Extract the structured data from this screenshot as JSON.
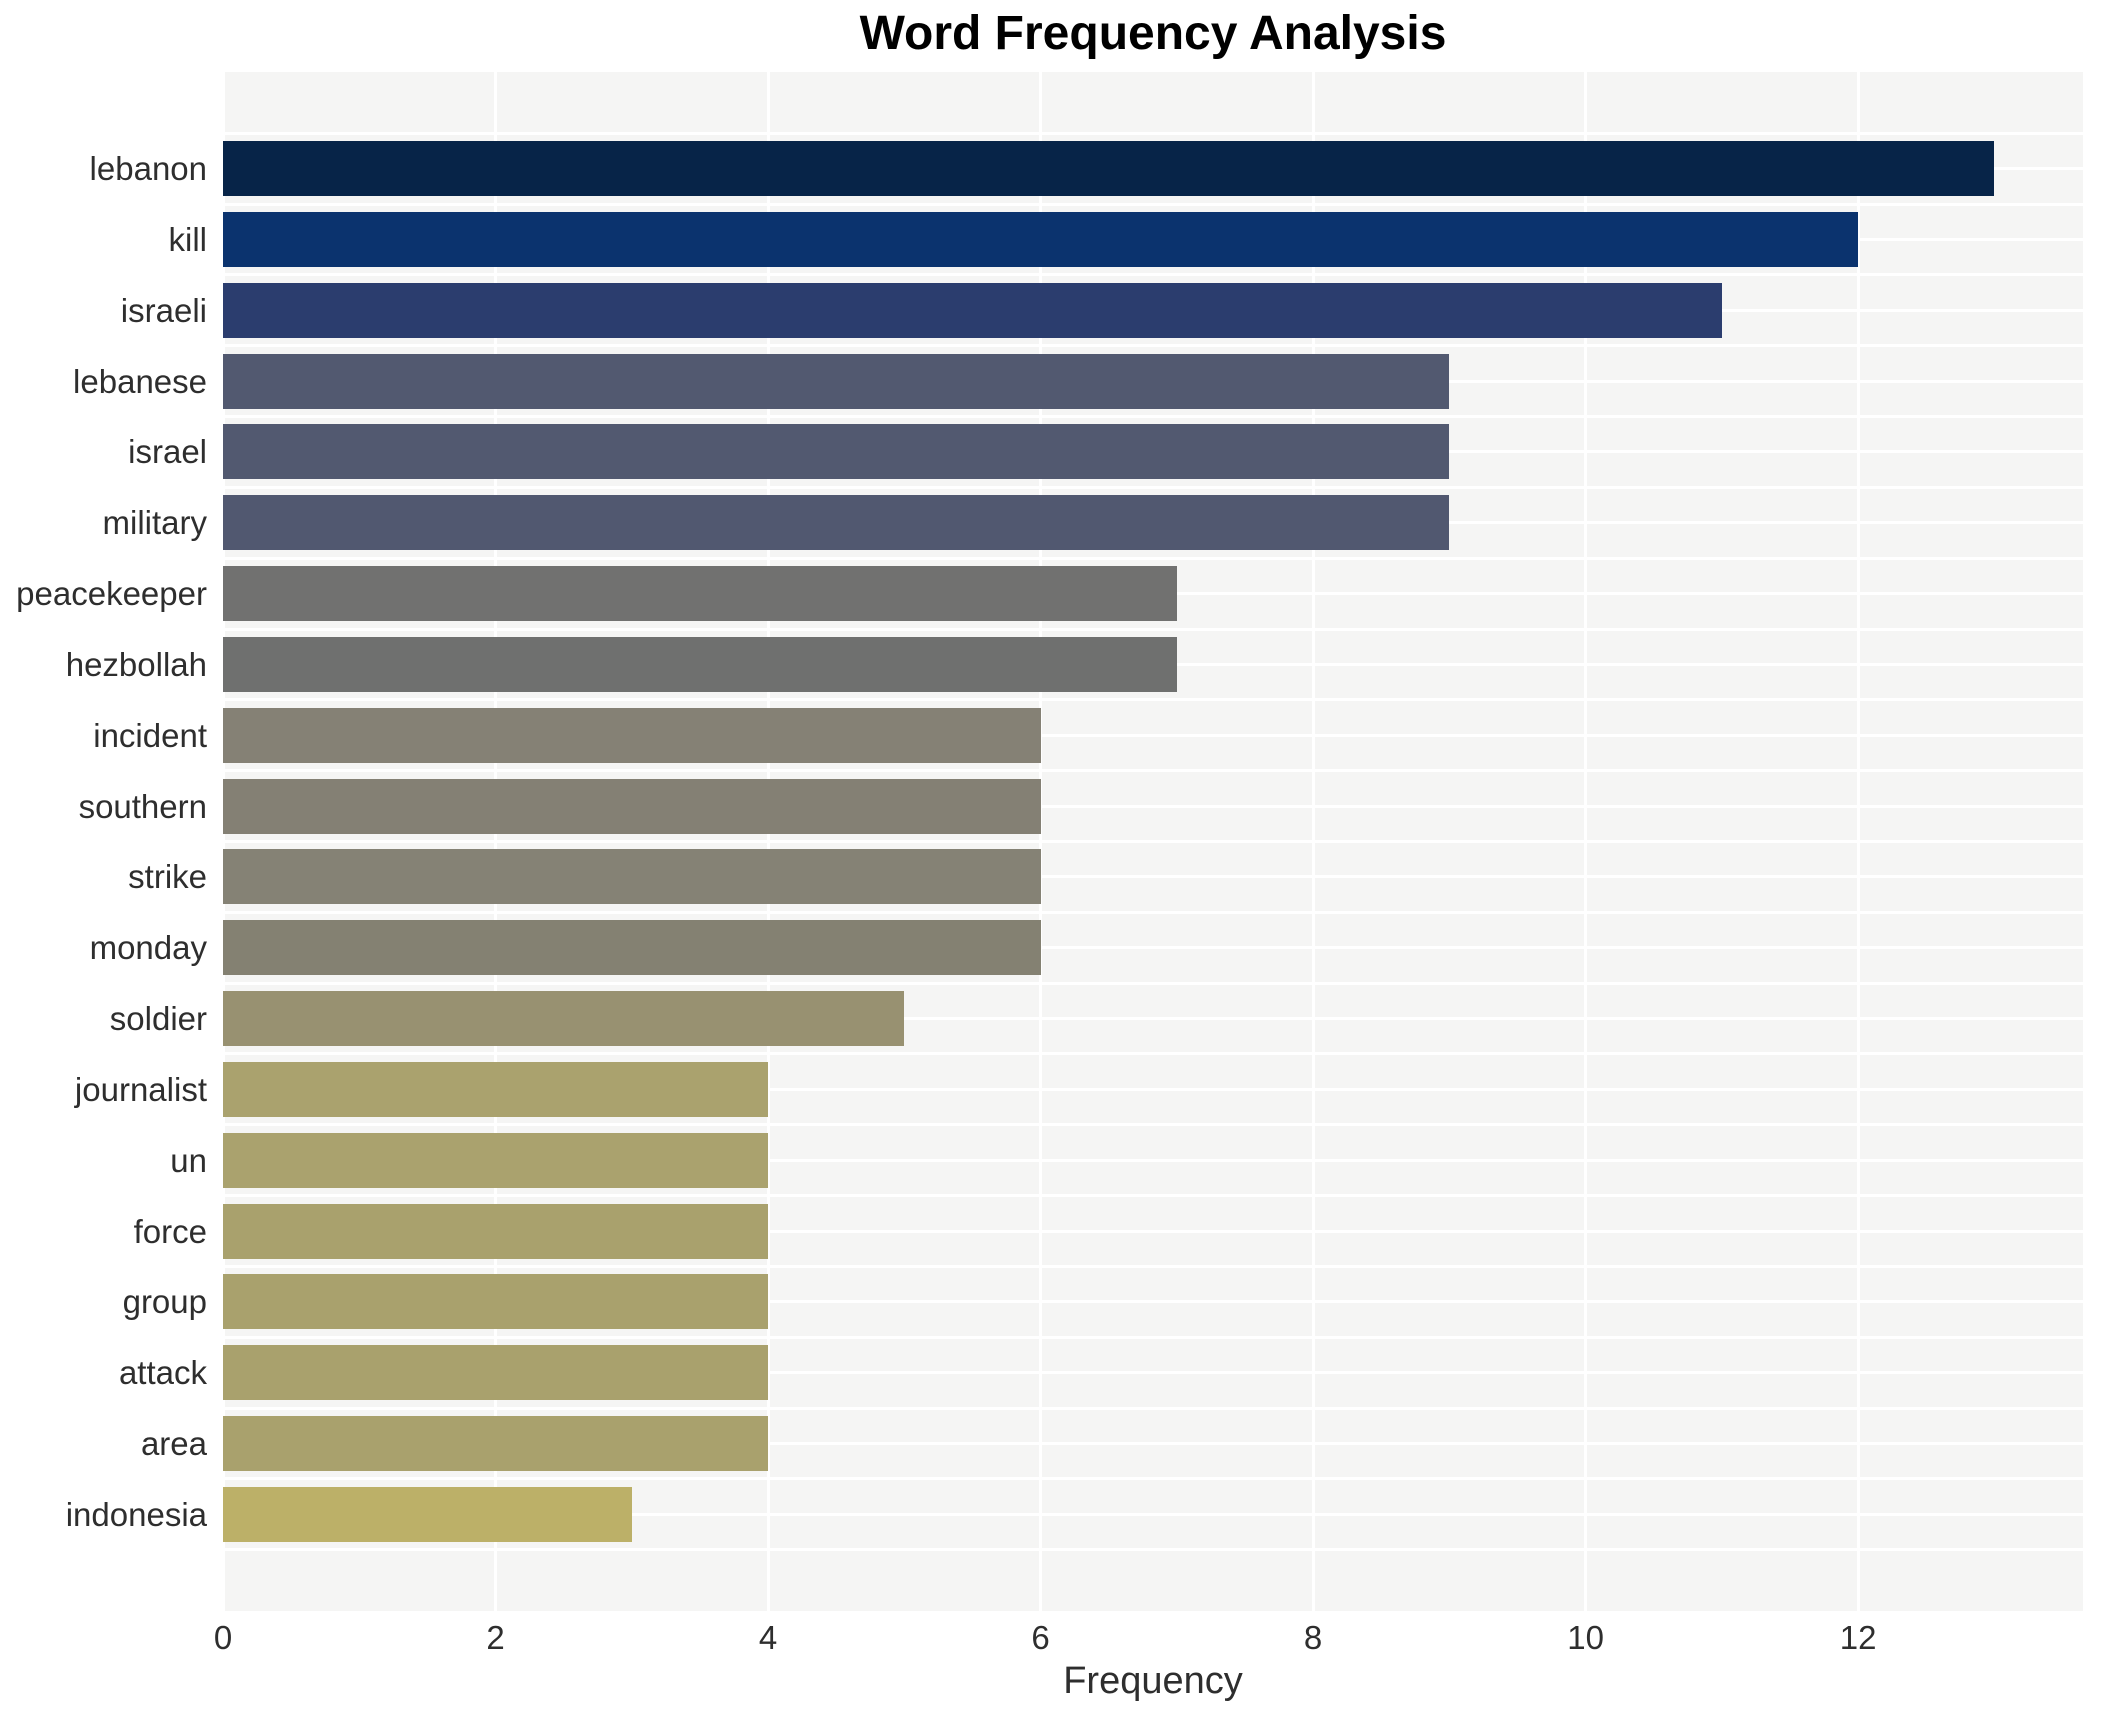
{
  "chart": {
    "title": "Word Frequency Analysis",
    "xlabel": "Frequency"
  },
  "chart_data": {
    "type": "bar",
    "orientation": "horizontal",
    "title": "Word Frequency Analysis",
    "xlabel": "Frequency",
    "ylabel": "",
    "categories": [
      "lebanon",
      "kill",
      "israeli",
      "lebanese",
      "israel",
      "military",
      "peacekeeper",
      "hezbollah",
      "incident",
      "southern",
      "strike",
      "monday",
      "soldier",
      "journalist",
      "un",
      "force",
      "group",
      "attack",
      "area",
      "indonesia"
    ],
    "values": [
      13,
      12,
      11,
      9,
      9,
      9,
      7,
      7,
      6,
      6,
      6,
      6,
      5,
      4,
      4,
      4,
      4,
      4,
      4,
      3
    ],
    "bar_colors": [
      "#072448",
      "#0b336e",
      "#2b3d6e",
      "#525970",
      "#525970",
      "#515870",
      "#717170",
      "#6f706f",
      "#858175",
      "#848074",
      "#858275",
      "#848172",
      "#989171",
      "#aaa26e",
      "#aaa26e",
      "#a9a16d",
      "#a9a16d",
      "#a9a16d",
      "#a9a16d",
      "#bcb068"
    ],
    "x_ticks": [
      0,
      2,
      4,
      6,
      8,
      10,
      12
    ],
    "xlim": [
      0,
      13.65
    ],
    "grid": true,
    "legend": false,
    "colors": {
      "plot_background": "#f5f5f4",
      "figure_background": "#ffffff",
      "gridline": "#ffffff",
      "tick_label": "#2e2e2e",
      "title": "#000000"
    }
  }
}
